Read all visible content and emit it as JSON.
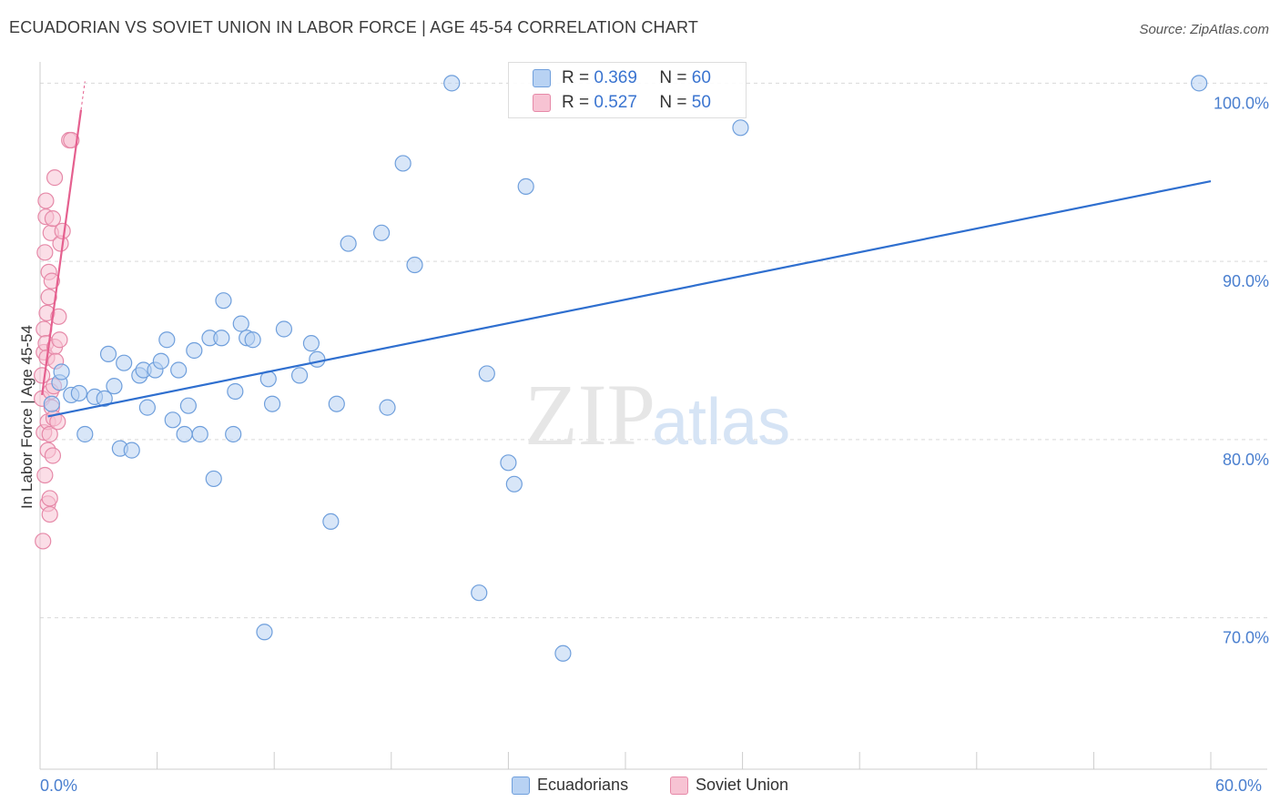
{
  "title": "ECUADORIAN VS SOVIET UNION IN LABOR FORCE | AGE 45-54 CORRELATION CHART",
  "source": "Source: ZipAtlas.com",
  "watermark": {
    "zip": "ZIP",
    "atlas": "atlas"
  },
  "legend": {
    "rows": [
      {
        "r_label": "R =",
        "r_value": "0.369",
        "n_label": "N =",
        "n_value": "60"
      },
      {
        "r_label": "R =",
        "r_value": "0.527",
        "n_label": "N =",
        "n_value": "50"
      }
    ]
  },
  "colors": {
    "blue_fill": "#b8d2f3",
    "blue_stroke": "#6f9fdc",
    "blue_line": "#2f6fcf",
    "pink_fill": "#f7c3d3",
    "pink_stroke": "#e689a8",
    "pink_line": "#e5608f",
    "axis_text": "#4a7fcf",
    "grid": "#d9d9d9"
  },
  "chart_data": {
    "type": "scatter",
    "title": "ECUADORIAN VS SOVIET UNION IN LABOR FORCE | AGE 45-54 CORRELATION CHART",
    "xlabel": "",
    "ylabel": "In Labor Force | Age 45-54",
    "xlim": [
      0,
      60
    ],
    "ylim": [
      61.5,
      101.5
    ],
    "x_tick_labels": [
      "0.0%",
      "60.0%"
    ],
    "y_ticks": [
      70,
      80,
      90,
      100
    ],
    "y_tick_labels": [
      "70.0%",
      "80.0%",
      "90.0%",
      "100.0%"
    ],
    "grid": true,
    "legend_position": "top-center",
    "series": [
      {
        "name": "Ecuadorians",
        "color": "#6f9fdc",
        "r": 0.369,
        "n": 60,
        "trend": {
          "x": [
            0.4,
            60
          ],
          "y": [
            81.3,
            94.5
          ]
        },
        "points": [
          [
            0.6,
            82.0
          ],
          [
            1.0,
            83.2
          ],
          [
            1.1,
            83.8
          ],
          [
            1.6,
            82.5
          ],
          [
            2.0,
            82.6
          ],
          [
            2.3,
            80.3
          ],
          [
            2.8,
            82.4
          ],
          [
            3.3,
            82.3
          ],
          [
            3.5,
            84.8
          ],
          [
            3.8,
            83.0
          ],
          [
            4.1,
            79.5
          ],
          [
            4.3,
            84.3
          ],
          [
            4.7,
            79.4
          ],
          [
            5.1,
            83.6
          ],
          [
            5.3,
            83.9
          ],
          [
            5.5,
            81.8
          ],
          [
            5.9,
            83.9
          ],
          [
            6.2,
            84.4
          ],
          [
            6.5,
            85.6
          ],
          [
            6.8,
            81.1
          ],
          [
            7.1,
            83.9
          ],
          [
            7.4,
            80.3
          ],
          [
            7.6,
            81.9
          ],
          [
            7.9,
            85.0
          ],
          [
            8.2,
            80.3
          ],
          [
            8.7,
            85.7
          ],
          [
            8.9,
            77.8
          ],
          [
            9.3,
            85.7
          ],
          [
            9.4,
            87.8
          ],
          [
            9.9,
            80.3
          ],
          [
            10.0,
            82.7
          ],
          [
            10.3,
            86.5
          ],
          [
            10.6,
            85.7
          ],
          [
            10.9,
            85.6
          ],
          [
            11.5,
            69.2
          ],
          [
            11.7,
            83.4
          ],
          [
            11.9,
            82.0
          ],
          [
            12.5,
            86.2
          ],
          [
            13.3,
            83.6
          ],
          [
            13.9,
            85.4
          ],
          [
            14.2,
            84.5
          ],
          [
            14.9,
            75.4
          ],
          [
            15.2,
            82.0
          ],
          [
            15.8,
            91.0
          ],
          [
            17.5,
            91.6
          ],
          [
            17.8,
            81.8
          ],
          [
            18.6,
            95.5
          ],
          [
            19.2,
            89.8
          ],
          [
            21.1,
            100.0
          ],
          [
            22.5,
            71.4
          ],
          [
            22.9,
            83.7
          ],
          [
            24.0,
            78.7
          ],
          [
            24.3,
            77.5
          ],
          [
            24.9,
            94.2
          ],
          [
            26.8,
            68.0
          ],
          [
            35.9,
            97.5
          ],
          [
            59.4,
            100.0
          ]
        ]
      },
      {
        "name": "Soviet Union",
        "color": "#e689a8",
        "r": 0.527,
        "n": 50,
        "trend": {
          "x": [
            0.1,
            2.1
          ],
          "y": [
            82.5,
            98.5
          ]
        },
        "points": [
          [
            0.1,
            82.3
          ],
          [
            0.1,
            83.6
          ],
          [
            0.15,
            74.3
          ],
          [
            0.2,
            80.4
          ],
          [
            0.2,
            84.9
          ],
          [
            0.2,
            86.2
          ],
          [
            0.25,
            90.5
          ],
          [
            0.25,
            78.0
          ],
          [
            0.3,
            92.5
          ],
          [
            0.3,
            93.4
          ],
          [
            0.3,
            85.4
          ],
          [
            0.35,
            84.6
          ],
          [
            0.35,
            87.1
          ],
          [
            0.4,
            76.4
          ],
          [
            0.4,
            79.4
          ],
          [
            0.4,
            81.0
          ],
          [
            0.45,
            88.0
          ],
          [
            0.45,
            89.4
          ],
          [
            0.5,
            75.8
          ],
          [
            0.5,
            76.7
          ],
          [
            0.5,
            80.3
          ],
          [
            0.55,
            91.6
          ],
          [
            0.55,
            82.7
          ],
          [
            0.6,
            81.8
          ],
          [
            0.6,
            88.9
          ],
          [
            0.65,
            92.4
          ],
          [
            0.65,
            79.1
          ],
          [
            0.7,
            81.2
          ],
          [
            0.7,
            83.0
          ],
          [
            0.75,
            94.7
          ],
          [
            0.75,
            85.2
          ],
          [
            0.8,
            84.4
          ],
          [
            0.9,
            81.0
          ],
          [
            0.95,
            86.9
          ],
          [
            1.0,
            85.6
          ],
          [
            1.05,
            91.0
          ],
          [
            1.15,
            91.7
          ],
          [
            1.5,
            96.8
          ],
          [
            1.6,
            96.8
          ]
        ]
      }
    ]
  }
}
